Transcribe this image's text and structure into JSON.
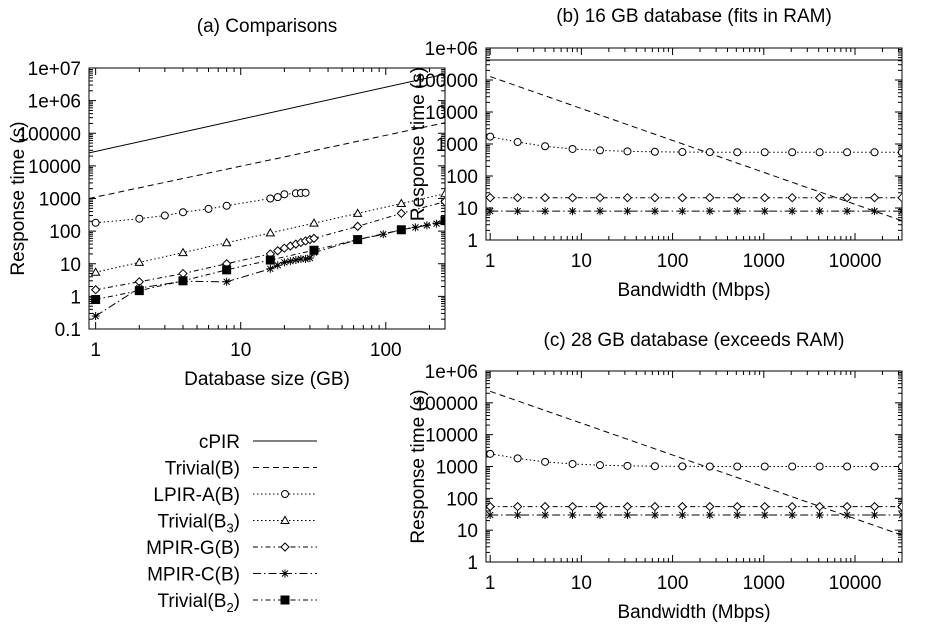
{
  "legend": {
    "entries": [
      {
        "series": "cPIR",
        "label": "cPIR",
        "sub": ""
      },
      {
        "series": "trivial_b",
        "label": "Trivial(B)",
        "sub": ""
      },
      {
        "series": "lpir_a",
        "label": "LPIR-A(B)",
        "sub": ""
      },
      {
        "series": "trivial_b3",
        "label": "Trivial(B",
        "sub": "3",
        "suffix": ")"
      },
      {
        "series": "mpir_g",
        "label": "MPIR-G(B)",
        "sub": ""
      },
      {
        "series": "mpir_c",
        "label": "MPIR-C(B)",
        "sub": ""
      },
      {
        "series": "trivial_b2",
        "label": "Trivial(B",
        "sub": "2",
        "suffix": ")"
      }
    ]
  },
  "chart_data": [
    {
      "id": "a",
      "type": "line",
      "title": "(a) Comparisons",
      "xlabel": "Database size (GB)",
      "ylabel": "Response time (s)",
      "xscale": "log",
      "yscale": "log",
      "xlim": [
        0.9,
        256
      ],
      "ylim": [
        0.1,
        10000000
      ],
      "xticks": [
        1,
        10,
        100
      ],
      "xtick_labels": [
        "1",
        "10",
        "100"
      ],
      "yticks": [
        0.1,
        1,
        10,
        100,
        1000,
        10000,
        100000,
        1000000,
        10000000
      ],
      "ytick_labels": [
        "0.1",
        "1",
        "10",
        "100",
        "1000",
        "10000",
        "100000",
        "1e+06",
        "1e+07"
      ],
      "legend_position": "below",
      "series": [
        {
          "key": "cPIR",
          "name": "cPIR",
          "x": [
            0.9,
            256
          ],
          "y": [
            25000,
            6500000
          ]
        },
        {
          "key": "trivial_b",
          "name": "Trivial(B)",
          "x": [
            0.9,
            256
          ],
          "y": [
            1000,
            210000
          ]
        },
        {
          "key": "lpir_a",
          "name": "LPIR-A(B)",
          "x": [
            1,
            2,
            3,
            4,
            6,
            8,
            16,
            18,
            20,
            24,
            26,
            28
          ],
          "y": [
            180,
            240,
            300,
            380,
            480,
            600,
            1000,
            1100,
            1350,
            1450,
            1480,
            1500
          ]
        },
        {
          "key": "trivial_b3",
          "name": "Trivial(B3)",
          "x": [
            1,
            2,
            4,
            8,
            16,
            32,
            64,
            128,
            256
          ],
          "y": [
            5.5,
            11,
            22,
            44,
            88,
            176,
            350,
            700,
            1400
          ]
        },
        {
          "key": "mpir_g",
          "name": "MPIR-G(B)",
          "x": [
            1,
            2,
            4,
            8,
            16,
            18,
            20,
            22,
            24,
            26,
            28,
            30,
            32,
            64,
            128,
            256
          ],
          "y": [
            1.6,
            2.8,
            5,
            10,
            20,
            25,
            30,
            35,
            40,
            45,
            50,
            55,
            60,
            140,
            350,
            800
          ]
        },
        {
          "key": "mpir_c",
          "name": "MPIR-C(B)",
          "x": [
            1,
            2,
            4,
            8,
            16,
            18,
            20,
            22,
            24,
            26,
            28,
            30,
            32,
            64,
            96,
            128,
            160,
            192,
            224,
            256
          ],
          "y": [
            0.25,
            1.8,
            2.9,
            2.8,
            7,
            9,
            11,
            12,
            13,
            14,
            14,
            15,
            22,
            55,
            80,
            110,
            130,
            150,
            170,
            190
          ]
        },
        {
          "key": "trivial_b2",
          "name": "Trivial(B2)",
          "x": [
            1,
            2,
            4,
            8,
            16,
            32,
            64,
            128,
            256
          ],
          "y": [
            0.8,
            1.5,
            3,
            6.5,
            13,
            26,
            55,
            110,
            210
          ]
        }
      ]
    },
    {
      "id": "b",
      "type": "line",
      "title": "(b) 16 GB database (fits in RAM)",
      "xlabel": "Bandwidth (Mbps)",
      "ylabel": "Response time (s)",
      "xscale": "log",
      "yscale": "log",
      "xlim": [
        0.9,
        32768
      ],
      "ylim": [
        1,
        1000000
      ],
      "xticks": [
        1,
        10,
        100,
        1000,
        10000
      ],
      "xtick_labels": [
        "1",
        "10",
        "100",
        "1000",
        "10000"
      ],
      "yticks": [
        1,
        10,
        100,
        1000,
        10000,
        100000,
        1000000
      ],
      "ytick_labels": [
        "1",
        "10",
        "100",
        "1000",
        "10000",
        "100000",
        "1e+06"
      ],
      "series": [
        {
          "key": "cPIR",
          "name": "cPIR",
          "x": [
            0.9,
            32768
          ],
          "y": [
            420000,
            420000
          ]
        },
        {
          "key": "trivial_b",
          "name": "Trivial(B)",
          "x": [
            1,
            32768
          ],
          "y": [
            128000,
            4
          ]
        },
        {
          "key": "lpir_a",
          "name": "LPIR-A(B)",
          "x": [
            1,
            2,
            4,
            8,
            16,
            32,
            64,
            128,
            256,
            512,
            1024,
            2048,
            4096,
            8192,
            16384,
            32768
          ],
          "y": [
            1700,
            1150,
            850,
            700,
            630,
            590,
            570,
            560,
            555,
            552,
            550,
            550,
            550,
            550,
            550,
            550
          ]
        },
        {
          "key": "mpir_g",
          "name": "MPIR-G(B)",
          "x": [
            1,
            2,
            4,
            8,
            16,
            32,
            64,
            128,
            256,
            512,
            1024,
            2048,
            4096,
            8192,
            16384,
            32768
          ],
          "y": [
            21,
            21,
            21,
            21,
            21,
            21,
            21,
            21,
            21,
            21,
            21,
            21,
            21,
            21,
            21,
            21
          ]
        },
        {
          "key": "mpir_c",
          "name": "MPIR-C(B)",
          "x": [
            1,
            2,
            4,
            8,
            16,
            32,
            64,
            128,
            256,
            512,
            1024,
            2048,
            4096,
            8192,
            16384,
            32768
          ],
          "y": [
            8,
            8,
            8,
            8,
            8,
            8,
            8,
            8,
            8,
            8,
            8,
            8,
            8,
            8,
            8,
            8
          ]
        }
      ]
    },
    {
      "id": "c",
      "type": "line",
      "title": "(c) 28 GB database (exceeds RAM)",
      "xlabel": "Bandwidth (Mbps)",
      "ylabel": "Response time (s)",
      "xscale": "log",
      "yscale": "log",
      "xlim": [
        0.9,
        32768
      ],
      "ylim": [
        1,
        1000000
      ],
      "xticks": [
        1,
        10,
        100,
        1000,
        10000
      ],
      "xtick_labels": [
        "1",
        "10",
        "100",
        "1000",
        "10000"
      ],
      "yticks": [
        1,
        10,
        100,
        1000,
        10000,
        100000,
        1000000
      ],
      "ytick_labels": [
        "1",
        "10",
        "100",
        "1000",
        "10000",
        "100000",
        "1e+06"
      ],
      "series": [
        {
          "key": "cPIR",
          "name": "cPIR",
          "x": [
            0.9,
            32768
          ],
          "y": [
            1000000,
            1000000
          ]
        },
        {
          "key": "trivial_b",
          "name": "Trivial(B)",
          "x": [
            1,
            32768
          ],
          "y": [
            230000,
            7
          ]
        },
        {
          "key": "lpir_a",
          "name": "LPIR-A(B)",
          "x": [
            1,
            2,
            4,
            8,
            16,
            32,
            64,
            128,
            256,
            512,
            1024,
            2048,
            4096,
            8192,
            16384,
            32768
          ],
          "y": [
            2500,
            1800,
            1400,
            1200,
            1100,
            1050,
            1020,
            1010,
            1000,
            1000,
            1000,
            1000,
            1000,
            1000,
            1000,
            1000
          ]
        },
        {
          "key": "mpir_g",
          "name": "MPIR-G(B)",
          "x": [
            1,
            2,
            4,
            8,
            16,
            32,
            64,
            128,
            256,
            512,
            1024,
            2048,
            4096,
            8192,
            16384,
            32768
          ],
          "y": [
            55,
            55,
            55,
            55,
            55,
            55,
            55,
            55,
            55,
            55,
            55,
            55,
            55,
            55,
            55,
            55
          ]
        },
        {
          "key": "mpir_c",
          "name": "MPIR-C(B)",
          "x": [
            1,
            2,
            4,
            8,
            16,
            32,
            64,
            128,
            256,
            512,
            1024,
            2048,
            4096,
            8192,
            16384,
            32768
          ],
          "y": [
            30,
            30,
            30,
            30,
            30,
            30,
            30,
            30,
            30,
            30,
            30,
            30,
            30,
            30,
            30,
            30
          ]
        }
      ]
    }
  ]
}
